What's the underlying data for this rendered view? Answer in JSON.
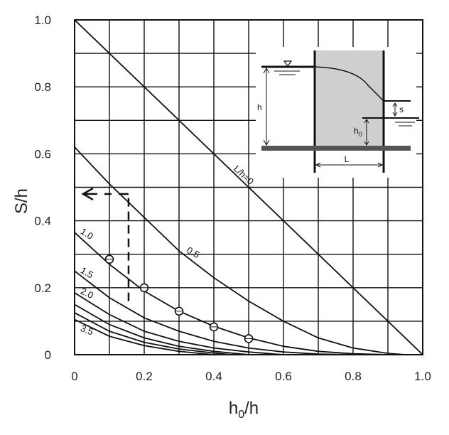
{
  "chart_data": {
    "type": "line",
    "xlabel": "h",
    "xlabel_sub": "0",
    "xlabel_tail": "/h",
    "ylabel": "S/h",
    "xlim": [
      0,
      1.0
    ],
    "ylim": [
      0,
      1.0
    ],
    "x_ticks": [
      "0",
      "0.2",
      "0.4",
      "0.6",
      "0.8",
      "1.0"
    ],
    "y_ticks": [
      "0",
      "0.2",
      "0.4",
      "0.6",
      "0.8",
      "1.0"
    ],
    "grid": true,
    "series": [
      {
        "name": "L/h=0",
        "x": [
          0,
          1.0
        ],
        "y": [
          1.0,
          0
        ]
      },
      {
        "name": "0.5",
        "x": [
          0,
          0.1,
          0.2,
          0.3,
          0.4,
          0.5,
          0.6,
          0.7,
          0.8,
          0.9,
          0.95
        ],
        "y": [
          0.62,
          0.51,
          0.41,
          0.31,
          0.23,
          0.16,
          0.1,
          0.05,
          0.02,
          0.004,
          0.0
        ]
      },
      {
        "name": "1.0",
        "x": [
          0,
          0.1,
          0.2,
          0.3,
          0.4,
          0.5,
          0.6,
          0.7,
          0.8,
          0.9
        ],
        "y": [
          0.365,
          0.27,
          0.19,
          0.13,
          0.085,
          0.05,
          0.025,
          0.01,
          0.003,
          0.0
        ]
      },
      {
        "name": "1.5",
        "x": [
          0,
          0.1,
          0.2,
          0.3,
          0.4,
          0.5,
          0.6,
          0.7,
          0.8
        ],
        "y": [
          0.25,
          0.17,
          0.11,
          0.07,
          0.04,
          0.02,
          0.008,
          0.002,
          0.0
        ]
      },
      {
        "name": "2.0",
        "x": [
          0,
          0.1,
          0.2,
          0.3,
          0.4,
          0.5,
          0.6
        ],
        "y": [
          0.185,
          0.12,
          0.07,
          0.04,
          0.02,
          0.008,
          0.0
        ]
      },
      {
        "name": "",
        "x": [
          0,
          0.1,
          0.2,
          0.3,
          0.4,
          0.5
        ],
        "y": [
          0.15,
          0.09,
          0.05,
          0.025,
          0.01,
          0.0
        ]
      },
      {
        "name": "",
        "x": [
          0,
          0.1,
          0.2,
          0.3,
          0.4,
          0.45
        ],
        "y": [
          0.125,
          0.07,
          0.037,
          0.017,
          0.005,
          0.0
        ]
      },
      {
        "name": "3.5",
        "x": [
          0,
          0.1,
          0.2,
          0.3,
          0.4
        ],
        "y": [
          0.105,
          0.055,
          0.027,
          0.01,
          0.0
        ]
      }
    ],
    "points": {
      "x": [
        0.1,
        0.2,
        0.3,
        0.4,
        0.5
      ],
      "y": [
        0.285,
        0.2,
        0.13,
        0.083,
        0.048
      ]
    },
    "example_reading": {
      "x": 0.155,
      "y": 0.48
    },
    "inset": {
      "labels": {
        "h": "h",
        "s": "s",
        "h0": "h",
        "h0_sub": "0",
        "L": "L"
      }
    }
  }
}
